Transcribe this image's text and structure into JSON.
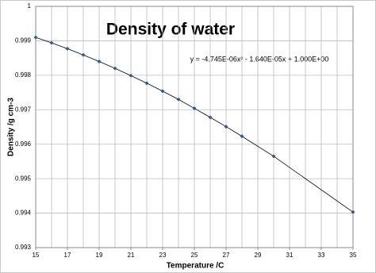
{
  "chart_data": {
    "type": "scatter",
    "title": "Density of water",
    "annotation": "y = -4.745E-06x² - 1.640E-05x + 1.000E+00",
    "x_label": "Temperature  /C",
    "y_label": "Density  /g cm-3",
    "x": [
      15,
      16,
      17,
      18,
      19,
      20,
      21,
      22,
      23,
      24,
      25,
      26,
      27,
      28,
      30,
      35
    ],
    "series": [
      {
        "color": "#2f5a8c",
        "values": [
          0.9991,
          0.99894,
          0.99877,
          0.99859,
          0.9984,
          0.9982,
          0.99799,
          0.99777,
          0.99754,
          0.9973,
          0.99704,
          0.99678,
          0.99651,
          0.99623,
          0.99565,
          0.99403
        ]
      }
    ],
    "xlim": [
      15,
      35
    ],
    "xticks": [
      15,
      17,
      19,
      21,
      23,
      25,
      27,
      29,
      31,
      33,
      35
    ],
    "xgrid": [
      15,
      16,
      17,
      18,
      19,
      20,
      21,
      22,
      23,
      24,
      25,
      26,
      27,
      28,
      29,
      30,
      31,
      32,
      33,
      34,
      35
    ],
    "ylim": [
      0.993,
      1
    ],
    "yticks": [
      0.993,
      0.994,
      0.995,
      0.996,
      0.997,
      0.998,
      0.999,
      1
    ],
    "grid": true,
    "trendline": true
  }
}
